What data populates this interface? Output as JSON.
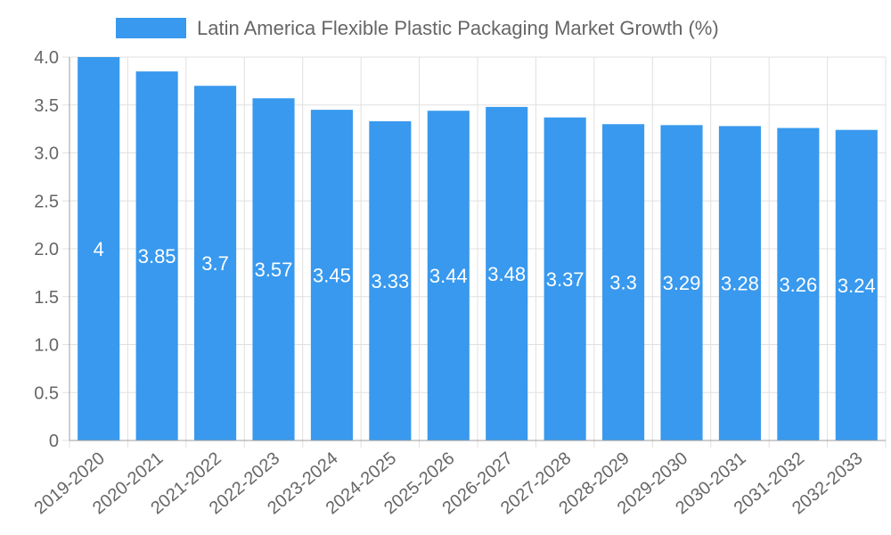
{
  "chart_data": {
    "type": "bar",
    "title": "",
    "xlabel": "",
    "ylabel": "",
    "legend": {
      "label": "Latin America Flexible Plastic Packaging Market Growth (%)",
      "position": "top"
    },
    "categories": [
      "2019-2020",
      "2020-2021",
      "2021-2022",
      "2022-2023",
      "2023-2024",
      "2024-2025",
      "2025-2026",
      "2026-2027",
      "2027-2028",
      "2028-2029",
      "2029-2030",
      "2030-2031",
      "2031-2032",
      "2032-2033"
    ],
    "values": [
      4,
      3.85,
      3.7,
      3.57,
      3.45,
      3.33,
      3.44,
      3.48,
      3.37,
      3.3,
      3.29,
      3.28,
      3.26,
      3.24
    ],
    "value_labels": [
      "4",
      "3.85",
      "3.7",
      "3.57",
      "3.45",
      "3.33",
      "3.44",
      "3.48",
      "3.37",
      "3.3",
      "3.29",
      "3.28",
      "3.26",
      "3.24"
    ],
    "ylim": [
      0,
      4
    ],
    "yticks": [
      0,
      0.5,
      1,
      1.5,
      2,
      2.5,
      3,
      3.5,
      4
    ],
    "ytick_labels": [
      "0",
      "0.5",
      "1.0",
      "1.5",
      "2.0",
      "2.5",
      "3.0",
      "3.5",
      "4.0"
    ],
    "grid": true,
    "colors": {
      "bar": "#3899ee",
      "grid": "#e0e0e0",
      "axis": "#9e9e9e",
      "text": "#666666",
      "value_text": "#ffffff"
    }
  }
}
